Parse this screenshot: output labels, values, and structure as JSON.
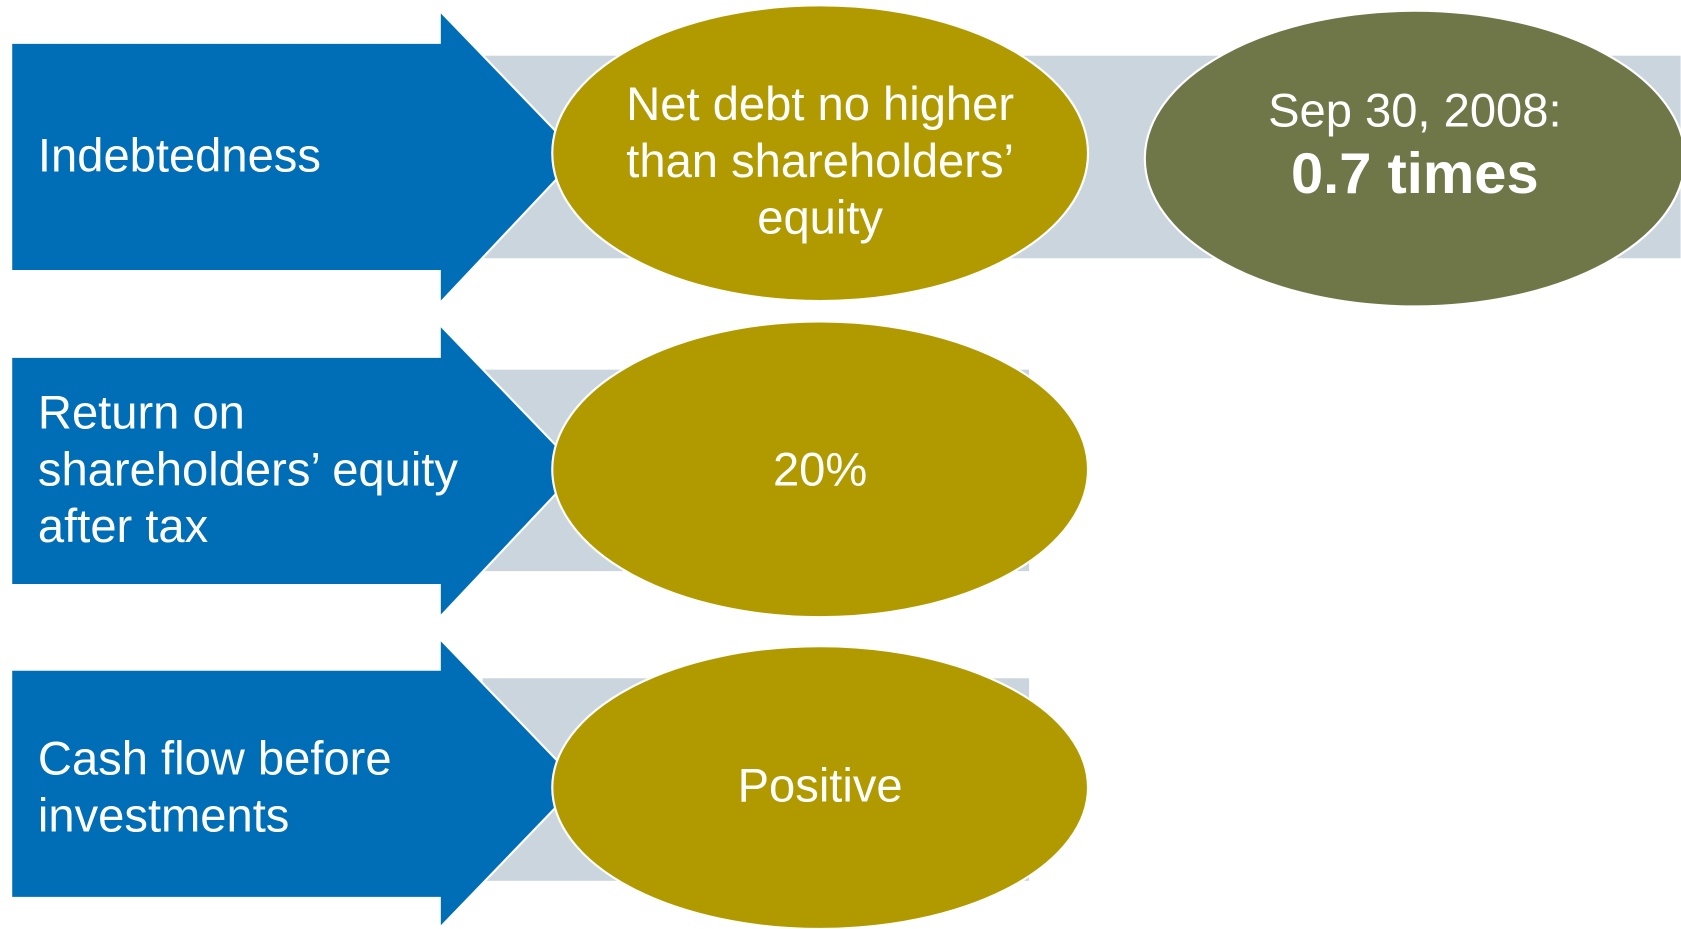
{
  "rows": [
    {
      "label": [
        "Indebtedness"
      ],
      "target": [
        "Net debt no higher",
        "than shareholders’",
        "equity"
      ]
    },
    {
      "label": [
        "Return on",
        "shareholders’ equity",
        "after tax"
      ],
      "target": [
        "20%"
      ]
    },
    {
      "label": [
        "Cash flow before",
        "investments"
      ],
      "target": [
        "Positive"
      ]
    }
  ],
  "status": {
    "date": "Sep 30, 2008:",
    "value": "0.7 times"
  }
}
